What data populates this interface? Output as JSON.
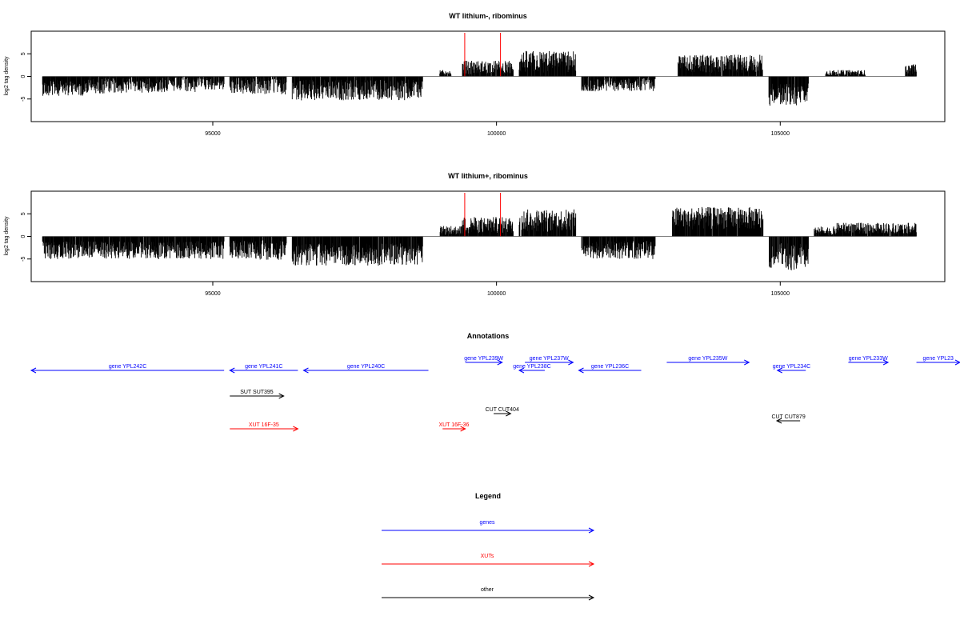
{
  "colors": {
    "gene": "#0000ff",
    "xut": "#ff0000",
    "other": "#000000",
    "density": "#000000",
    "marker": "#ff0000"
  },
  "chart_data": [
    {
      "type": "bar",
      "title": "WT lithium-, ribominus",
      "xlabel": "",
      "ylabel": "log2 tag density",
      "xlim": [
        91800,
        107900
      ],
      "ylim": [
        -10,
        10
      ],
      "xticks": [
        95000,
        100000,
        105000
      ],
      "xtick_labels": [
        "95000",
        "100000",
        "105000"
      ],
      "yticks": [
        -5,
        0,
        5
      ],
      "ytick_labels": [
        "-5",
        "0",
        "5"
      ],
      "grid": false,
      "red_markers_x": [
        99440,
        100070
      ],
      "density_segments": [
        {
          "start": 92000,
          "end": 92800,
          "sign": -1,
          "level": 2.5,
          "var": 1.8
        },
        {
          "start": 92800,
          "end": 93500,
          "sign": -1,
          "level": 2.0,
          "var": 1.8
        },
        {
          "start": 93500,
          "end": 94700,
          "sign": -1,
          "level": 1.8,
          "var": 1.8
        },
        {
          "start": 94700,
          "end": 95200,
          "sign": -1,
          "level": 1.5,
          "var": 1.5
        },
        {
          "start": 95300,
          "end": 96300,
          "sign": -1,
          "level": 2.0,
          "var": 2.0
        },
        {
          "start": 96400,
          "end": 98700,
          "sign": -1,
          "level": 3.0,
          "var": 2.3
        },
        {
          "start": 99000,
          "end": 99200,
          "sign": 1,
          "level": 0.8,
          "var": 0.6
        },
        {
          "start": 99400,
          "end": 100300,
          "sign": 1,
          "level": 2.0,
          "var": 1.5
        },
        {
          "start": 100400,
          "end": 101400,
          "sign": 1,
          "level": 3.2,
          "var": 2.5
        },
        {
          "start": 101500,
          "end": 102800,
          "sign": -1,
          "level": 1.8,
          "var": 1.5
        },
        {
          "start": 103200,
          "end": 104700,
          "sign": 1,
          "level": 2.8,
          "var": 2.0
        },
        {
          "start": 104800,
          "end": 105500,
          "sign": -1,
          "level": 4.0,
          "var": 2.5
        },
        {
          "start": 105800,
          "end": 106500,
          "sign": 1,
          "level": 0.8,
          "var": 0.6
        },
        {
          "start": 107200,
          "end": 107400,
          "sign": 1,
          "level": 1.5,
          "var": 1.2
        }
      ]
    },
    {
      "type": "bar",
      "title": "WT lithium+, ribominus",
      "xlabel": "",
      "ylabel": "log2 tag density",
      "xlim": [
        91800,
        107900
      ],
      "ylim": [
        -10,
        10
      ],
      "xticks": [
        95000,
        100000,
        105000
      ],
      "xtick_labels": [
        "95000",
        "100000",
        "105000"
      ],
      "yticks": [
        -5,
        0,
        5
      ],
      "ytick_labels": [
        "-5",
        "0",
        "5"
      ],
      "grid": false,
      "red_markers_x": [
        99440,
        100070
      ],
      "density_segments": [
        {
          "start": 92000,
          "end": 95200,
          "sign": -1,
          "level": 3.0,
          "var": 2.0
        },
        {
          "start": 95300,
          "end": 96300,
          "sign": -1,
          "level": 3.0,
          "var": 2.2
        },
        {
          "start": 96400,
          "end": 98700,
          "sign": -1,
          "level": 4.0,
          "var": 2.5
        },
        {
          "start": 99000,
          "end": 99400,
          "sign": 1,
          "level": 1.3,
          "var": 1.0
        },
        {
          "start": 99400,
          "end": 100300,
          "sign": 1,
          "level": 2.5,
          "var": 1.8
        },
        {
          "start": 100400,
          "end": 101400,
          "sign": 1,
          "level": 3.5,
          "var": 2.5
        },
        {
          "start": 101500,
          "end": 102800,
          "sign": -1,
          "level": 3.0,
          "var": 2.0
        },
        {
          "start": 103100,
          "end": 104700,
          "sign": 1,
          "level": 4.0,
          "var": 2.5
        },
        {
          "start": 104800,
          "end": 105500,
          "sign": -1,
          "level": 4.5,
          "var": 3.0
        },
        {
          "start": 105600,
          "end": 106000,
          "sign": 1,
          "level": 1.2,
          "var": 1.0
        },
        {
          "start": 106000,
          "end": 107400,
          "sign": 1,
          "level": 1.8,
          "var": 1.2
        }
      ]
    }
  ],
  "annotations": {
    "title": "Annotations",
    "items": [
      {
        "label": "gene YPL242C",
        "kind": "gene",
        "start": 91800,
        "end": 95200,
        "dir": "-",
        "row": 1
      },
      {
        "label": "gene YPL241C",
        "kind": "gene",
        "start": 95300,
        "end": 96500,
        "dir": "-",
        "row": 1
      },
      {
        "label": "gene YPL240C",
        "kind": "gene",
        "start": 96600,
        "end": 98800,
        "dir": "-",
        "row": 1
      },
      {
        "label": "gene YPL239W",
        "kind": "gene",
        "start": 99450,
        "end": 100100,
        "dir": "+",
        "row": 0
      },
      {
        "label": "gene YPL238C",
        "kind": "gene",
        "start": 100400,
        "end": 100850,
        "dir": "-",
        "row": 1
      },
      {
        "label": "gene YPL237W",
        "kind": "gene",
        "start": 100500,
        "end": 101350,
        "dir": "+",
        "row": 0
      },
      {
        "label": "gene YPL236C",
        "kind": "gene",
        "start": 101450,
        "end": 102550,
        "dir": "-",
        "row": 1
      },
      {
        "label": "gene YPL235W",
        "kind": "gene",
        "start": 103000,
        "end": 104450,
        "dir": "+",
        "row": 0
      },
      {
        "label": "gene YPL234C",
        "kind": "gene",
        "start": 104950,
        "end": 105450,
        "dir": "-",
        "row": 1
      },
      {
        "label": "gene YPL233W",
        "kind": "gene",
        "start": 106200,
        "end": 106900,
        "dir": "+",
        "row": 0
      },
      {
        "label": "gene YPL23",
        "kind": "gene",
        "start": 107400,
        "end": 108200,
        "dir": "+",
        "row": 0
      },
      {
        "label": "SUT SUT395",
        "kind": "other",
        "start": 95300,
        "end": 96250,
        "dir": "+",
        "row": 2
      },
      {
        "label": "CUT CUT404",
        "kind": "other",
        "start": 99950,
        "end": 100250,
        "dir": "+",
        "row": 3
      },
      {
        "label": "CUT CUT879",
        "kind": "other",
        "start": 104940,
        "end": 105350,
        "dir": "-",
        "row": 4
      },
      {
        "label": "XUT 16F-35",
        "kind": "xut",
        "start": 95300,
        "end": 96500,
        "dir": "+",
        "row": 5
      },
      {
        "label": "XUT 16F-36",
        "kind": "xut",
        "start": 99050,
        "end": 99450,
        "dir": "+",
        "row": 5
      }
    ]
  },
  "legend": {
    "title": "Legend",
    "items": [
      {
        "label": "genes",
        "kind": "gene"
      },
      {
        "label": "XUTs",
        "kind": "xut"
      },
      {
        "label": "other",
        "kind": "other"
      }
    ]
  }
}
